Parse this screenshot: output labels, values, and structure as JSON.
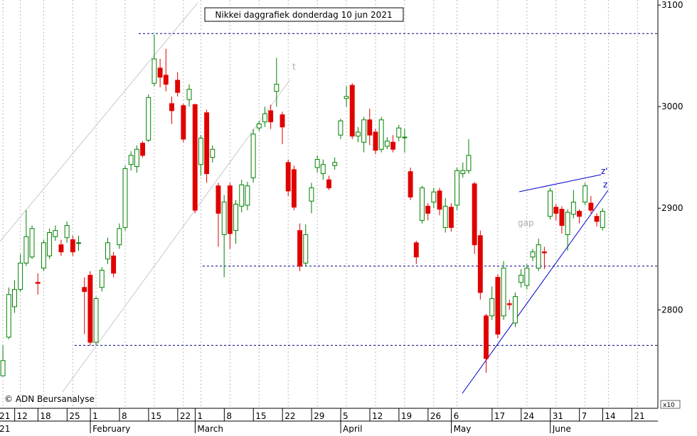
{
  "chart_data": {
    "type": "candlestick",
    "title": "Nikkei daggrafiek donderdag 10 jun 2021",
    "copyright": "© ADN Beursanalyse",
    "scale_note": "x10",
    "annotations": [
      "t",
      "gap",
      "z'",
      "z"
    ],
    "categories": [
      "21",
      null,
      null,
      "12",
      null,
      null,
      null,
      "18",
      null,
      null,
      null,
      null,
      "25",
      null,
      null,
      null,
      "1",
      null,
      null,
      null,
      null,
      "8",
      null,
      null,
      null,
      null,
      "15",
      null,
      null,
      null,
      null,
      "22",
      null,
      null,
      "1",
      null,
      null,
      null,
      null,
      "8",
      null,
      null,
      null,
      null,
      "15",
      null,
      null,
      null,
      null,
      "22",
      null,
      null,
      null,
      null,
      "29",
      null,
      null,
      null,
      null,
      "5",
      null,
      null,
      null,
      null,
      "12",
      null,
      null,
      null,
      null,
      "19",
      null,
      null,
      null,
      null,
      "26",
      null,
      null,
      null,
      "6",
      null,
      null,
      null,
      null,
      null,
      null,
      "17",
      null,
      null,
      null,
      null,
      "24",
      null,
      null,
      null,
      null,
      "31",
      null,
      null,
      null,
      null,
      "7",
      null,
      null,
      null,
      "14",
      null,
      null,
      null,
      null,
      "21",
      null,
      null,
      null
    ],
    "months": [
      "21",
      null,
      null,
      null,
      null,
      null,
      null,
      null,
      null,
      null,
      null,
      null,
      null,
      null,
      null,
      null,
      "February",
      null,
      null,
      null,
      null,
      null,
      null,
      null,
      null,
      null,
      null,
      null,
      null,
      null,
      null,
      null,
      null,
      null,
      "March",
      null,
      null,
      null,
      null,
      null,
      null,
      null,
      null,
      null,
      null,
      null,
      null,
      null,
      null,
      null,
      null,
      null,
      null,
      null,
      null,
      null,
      null,
      null,
      null,
      "April",
      null,
      null,
      null,
      null,
      null,
      null,
      null,
      null,
      null,
      null,
      null,
      null,
      null,
      null,
      null,
      null,
      null,
      null,
      "May",
      null,
      null,
      null,
      null,
      null,
      null,
      null,
      null,
      null,
      null,
      null,
      null,
      null,
      null,
      null,
      null,
      "June",
      null,
      null,
      null,
      null,
      null,
      null,
      null,
      null,
      null,
      null,
      null,
      null,
      null,
      null,
      null,
      null,
      null
    ],
    "open": [
      2735,
      2773,
      2803,
      2820,
      2846,
      2852,
      2827,
      2841,
      2853,
      2872,
      2864,
      2871,
      2869,
      2866,
      2822,
      2834,
      2768,
      2822,
      2850,
      2853,
      2864,
      2881,
      2943,
      2941,
      2964,
      2967,
      3023,
      3038,
      3031,
      3003,
      3026,
      3001,
      3007,
      3002,
      2943,
      2994,
      2950,
      2922,
      2874,
      2922,
      2878,
      2902,
      2903,
      2930,
      2979,
      2985,
      2996,
      3015,
      2992,
      2945,
      2938,
      2878,
      2846,
      2907,
      2940,
      2934,
      2928,
      2942,
      2972,
      3008,
      3021,
      2971,
      2965,
      2987,
      2975,
      2958,
      2961,
      2965,
      2970,
      2970,
      2936,
      2866,
      2888,
      2902,
      2906,
      2917,
      2881,
      2901,
      2903,
      2934,
      2937,
      2924,
      2873,
      2794,
      2794,
      2832,
      2794,
      2806,
      2787,
      2827,
      2824,
      2852,
      2841,
      2857,
      2892,
      2901,
      2899,
      2874,
      2894,
      2897,
      2906,
      2905,
      2892,
      2881,
      null,
      null,
      null,
      null,
      null,
      null,
      null,
      null,
      null
    ],
    "high": [
      2765,
      2822,
      2829,
      2855,
      2898,
      2883,
      2836,
      2869,
      2880,
      2883,
      2869,
      2887,
      2873,
      2873,
      2832,
      2838,
      2813,
      2842,
      2871,
      2857,
      2885,
      2942,
      2956,
      2962,
      2966,
      3012,
      3071,
      3047,
      3057,
      3010,
      3034,
      3003,
      3022,
      3003,
      2972,
      2997,
      2962,
      2925,
      2913,
      2925,
      2908,
      2928,
      2926,
      2978,
      2986,
      3000,
      3002,
      3048,
      2995,
      2948,
      2942,
      2885,
      2884,
      2925,
      2952,
      2948,
      2932,
      2950,
      2988,
      3020,
      3023,
      2980,
      2990,
      2998,
      2978,
      2990,
      2970,
      2972,
      2982,
      2978,
      2940,
      2868,
      2922,
      2905,
      2920,
      2920,
      2910,
      2905,
      2940,
      2945,
      2968,
      2926,
      2878,
      2796,
      2823,
      2835,
      2848,
      2810,
      2817,
      2840,
      2845,
      2860,
      2870,
      2862,
      2920,
      2904,
      2902,
      2899,
      2918,
      2899,
      2925,
      2912,
      2895,
      2900,
      null,
      null,
      null,
      null,
      null,
      null,
      null,
      null,
      null
    ],
    "low": [
      2735,
      2771,
      2797,
      2818,
      2843,
      2850,
      2815,
      2838,
      2850,
      2868,
      2853,
      2866,
      2853,
      2858,
      2776,
      2765,
      2765,
      2818,
      2845,
      2832,
      2860,
      2878,
      2937,
      2935,
      2950,
      2965,
      3020,
      3019,
      3015,
      2983,
      3010,
      2965,
      3000,
      2895,
      2932,
      2925,
      2945,
      2862,
      2832,
      2860,
      2865,
      2896,
      2898,
      2925,
      2976,
      2980,
      2978,
      3000,
      2963,
      2912,
      2898,
      2838,
      2843,
      2895,
      2935,
      2928,
      2918,
      2938,
      2968,
      3000,
      2968,
      2965,
      2955,
      2962,
      2953,
      2955,
      2958,
      2955,
      2966,
      2955,
      2908,
      2845,
      2885,
      2888,
      2900,
      2893,
      2876,
      2877,
      2898,
      2930,
      2934,
      2855,
      2810,
      2738,
      2790,
      2772,
      2790,
      2800,
      2783,
      2822,
      2820,
      2848,
      2838,
      2840,
      2889,
      2888,
      2875,
      2858,
      2890,
      2885,
      2903,
      2895,
      2882,
      2878,
      null,
      null,
      null,
      null,
      null,
      null,
      null,
      null,
      null
    ],
    "close": [
      2750,
      2815,
      2820,
      2846,
      2872,
      2880,
      2826,
      2866,
      2876,
      2878,
      2857,
      2883,
      2857,
      2866,
      2818,
      2768,
      2811,
      2839,
      2866,
      2836,
      2880,
      2939,
      2952,
      2958,
      2952,
      3009,
      3047,
      3029,
      3022,
      2996,
      3014,
      2968,
      3017,
      2898,
      2969,
      2934,
      2958,
      2895,
      2906,
      2875,
      2904,
      2923,
      2922,
      2973,
      2983,
      2993,
      2985,
      3022,
      2980,
      2917,
      2901,
      2843,
      2874,
      2920,
      2948,
      2943,
      2920,
      2945,
      2986,
      3010,
      2971,
      2975,
      2987,
      2972,
      2957,
      2987,
      2966,
      2958,
      2979,
      2970,
      2911,
      2852,
      2920,
      2895,
      2916,
      2899,
      2902,
      2881,
      2937,
      2937,
      2952,
      2864,
      2817,
      2752,
      2811,
      2776,
      2841,
      2805,
      2813,
      2834,
      2841,
      2857,
      2864,
      2856,
      2917,
      2895,
      2883,
      2896,
      2906,
      2892,
      2922,
      2898,
      2887,
      2897,
      null,
      null,
      null,
      null,
      null,
      null,
      null,
      null,
      null
    ],
    "up_color": "#008000",
    "down_color": "#e00000",
    "reference_lines": [
      3072,
      2843,
      2765
    ],
    "reference_color": "#00008b",
    "ylim": [
      2703,
      3105
    ],
    "yticks": [
      2800,
      2900,
      3000,
      3100
    ],
    "grid": true
  }
}
